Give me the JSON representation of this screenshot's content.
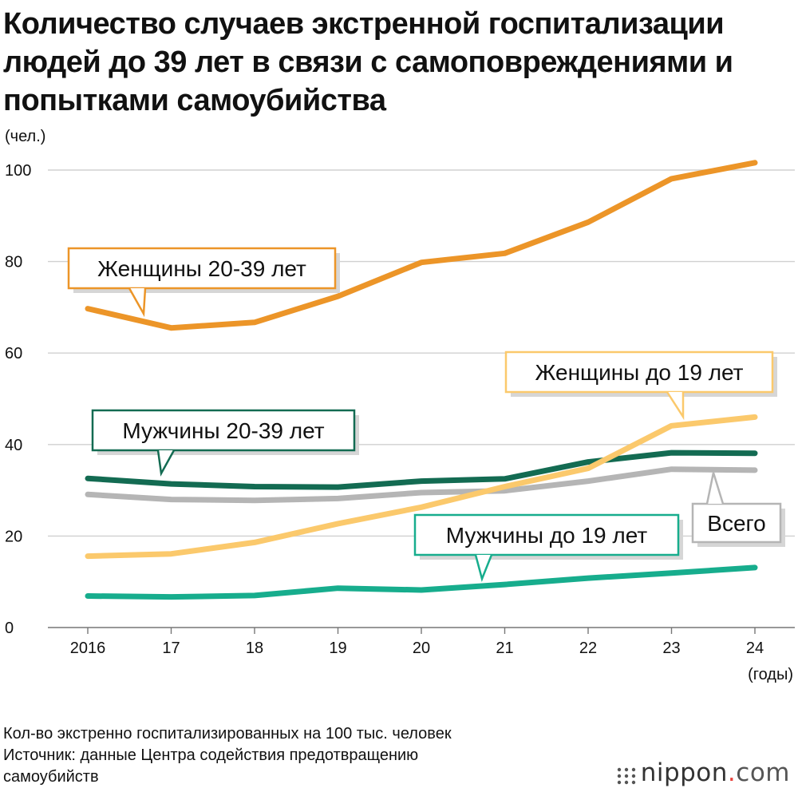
{
  "title": "Количество случаев экстренной госпитализации людей до 39 лет в связи с самоповреждениями и попытками самоубийства",
  "footnotes": [
    "Кол-во экстренно госпитализированных на 100 тыс. человек",
    "Источник: данные Центра содействия предотвращению",
    "самоубийств"
  ],
  "brand": {
    "name": "nippon",
    "dot": ".",
    "tld": "com"
  },
  "chart_data": {
    "type": "line",
    "ylabel": "(чел.)",
    "xlabel": "(годы)",
    "ylim": [
      0,
      100
    ],
    "yticks": [
      0,
      20,
      40,
      60,
      80,
      100
    ],
    "categories": [
      "2016",
      "17",
      "18",
      "19",
      "20",
      "21",
      "22",
      "23",
      "24"
    ],
    "grid": true,
    "series": [
      {
        "name": "Женщины 20-39 лет",
        "color": "#ec9528",
        "values": [
          69.7,
          65.5,
          66.7,
          72.4,
          79.8,
          81.8,
          88.6,
          98.1,
          101.6
        ]
      },
      {
        "name": "Мужчины 20-39 лет",
        "color": "#136b52",
        "values": [
          32.6,
          31.4,
          30.8,
          30.7,
          32.0,
          32.5,
          36.2,
          38.2,
          38.1
        ]
      },
      {
        "name": "Всего",
        "color": "#b5b5b5",
        "values": [
          29.1,
          28.0,
          27.8,
          28.2,
          29.5,
          29.9,
          32.0,
          34.6,
          34.4
        ]
      },
      {
        "name": "Женщины до 19 лет",
        "color": "#fbc96c",
        "values": [
          15.6,
          16.1,
          18.6,
          22.7,
          26.3,
          30.8,
          34.8,
          44.1,
          46.0
        ]
      },
      {
        "name": "Мужчины до 19 лет",
        "color": "#17ad8d",
        "values": [
          6.9,
          6.7,
          7.0,
          8.6,
          8.2,
          9.4,
          10.8,
          11.9,
          13.1
        ]
      }
    ]
  }
}
